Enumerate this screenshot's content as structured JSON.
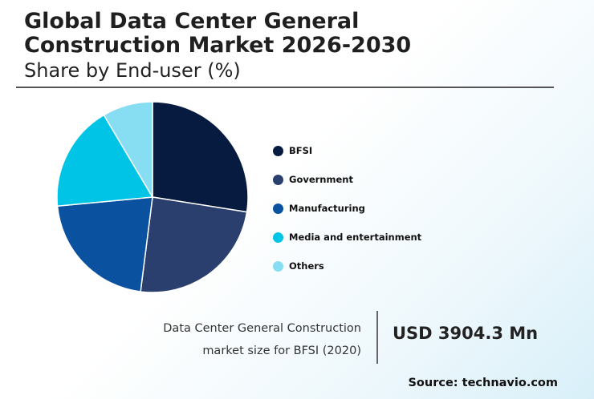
{
  "header": {
    "title": "Global Data Center General Construction Market 2026-2030",
    "subtitle": "Share by End-user (%)"
  },
  "chart_data": {
    "type": "pie",
    "categories": [
      "BFSI",
      "Government",
      "Manufacturing",
      "Media and entertainment",
      "Others"
    ],
    "values": [
      27.5,
      24.5,
      21.5,
      18,
      8.5
    ],
    "colors": [
      "#071a40",
      "#2b3f6e",
      "#0a51a0",
      "#00c4e6",
      "#87ddf1"
    ],
    "legend_position": "right"
  },
  "stat": {
    "label_line1": "Data Center General Construction",
    "label_line2": "market size for BFSI (2020)",
    "value": "USD 3904.3 Mn"
  },
  "footer": {
    "source": "Source: technavio.com"
  }
}
